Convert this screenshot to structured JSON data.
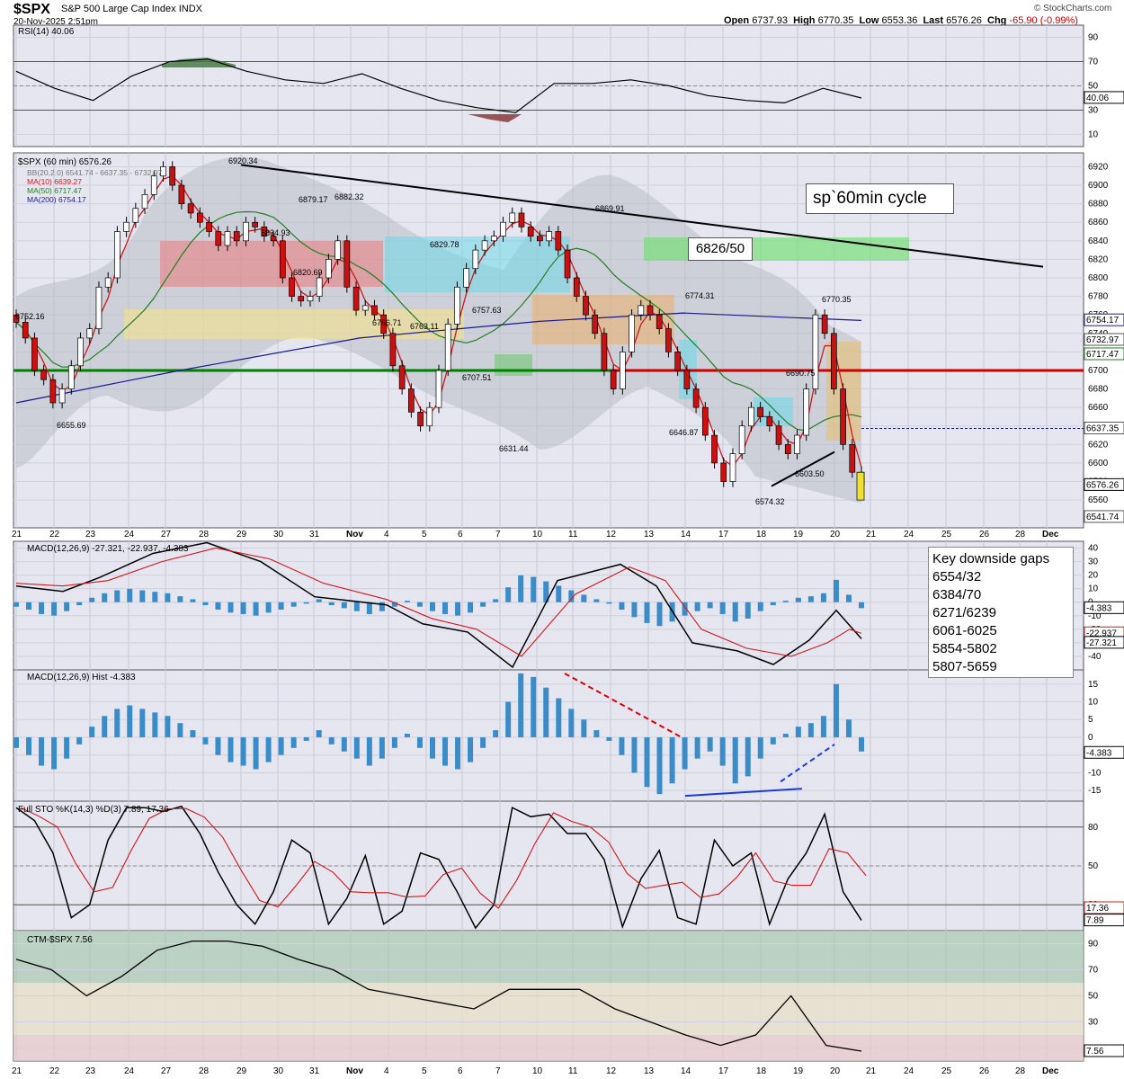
{
  "header": {
    "ticker": "$SPX",
    "name": "S&P 500 Large Cap Index",
    "exchange": "INDX",
    "datetime": "20-Nov-2025 2:51pm",
    "copyright": "© StockCharts.com",
    "open_label": "Open",
    "open": "6737.93",
    "high_label": "High",
    "high": "6770.35",
    "low_label": "Low",
    "low": "6553.36",
    "last_label": "Last",
    "last": "6576.26",
    "chg_label": "Chg",
    "chg": "-65.90 (-0.99%)"
  },
  "annotations": {
    "cycle_label": "sp`60min cycle",
    "level_label": "6826/50",
    "gaps_title": "Key downside gaps",
    "gaps": [
      "6554/32",
      "6384/70",
      "6271/6239",
      "6061-6025",
      "5854-5802",
      "5807-5659"
    ]
  },
  "colors": {
    "panel_bg": "#e6e6f0",
    "up_candle": "#ffffff",
    "down_candle": "#cc1010",
    "ma10": "#d01818",
    "ma50": "#208020",
    "ma200": "#1a1a8a",
    "bollinger_fill": "#b8bcc6",
    "histogram": "#3a8cc8",
    "support_green": "#008000",
    "support_red": "#cc0000",
    "trend": "#000000"
  },
  "chart_data": [
    {
      "type": "line",
      "panel": "RSI",
      "title": "RSI(14) 40.06",
      "ylim": [
        0,
        100
      ],
      "ticks": [
        10,
        30,
        50,
        70,
        90
      ],
      "last_label": "40.06",
      "x": [
        "Oct 21",
        "Oct 22",
        "Oct 23",
        "Oct 24",
        "Oct 27",
        "Oct 28",
        "Oct 29",
        "Oct 30",
        "Oct 31",
        "Nov 3",
        "Nov 4",
        "Nov 5",
        "Nov 6",
        "Nov 7",
        "Nov 10",
        "Nov 11",
        "Nov 12",
        "Nov 13",
        "Nov 14",
        "Nov 17",
        "Nov 18",
        "Nov 19",
        "Nov 20"
      ],
      "values": [
        62,
        48,
        38,
        58,
        70,
        72,
        62,
        55,
        52,
        60,
        48,
        38,
        32,
        28,
        52,
        52,
        55,
        50,
        42,
        38,
        36,
        48,
        40
      ]
    },
    {
      "type": "line",
      "panel": "Price",
      "title": "$SPX (60 min) 6576.26",
      "legend": [
        "BB(20,2.0) 6541.74 - 6637.35 - 6732.97",
        "MA(10) 6639.27",
        "MA(50) 6717.47",
        "MA(200) 6754.17"
      ],
      "ylim": [
        6530,
        6935
      ],
      "ticks": [
        6560,
        6580,
        6600,
        6620,
        6640,
        6660,
        6680,
        6700,
        6720,
        6740,
        6760,
        6780,
        6800,
        6820,
        6840,
        6860,
        6880,
        6900,
        6920
      ],
      "x_labels": [
        "21",
        "22",
        "23",
        "24",
        "27",
        "28",
        "29",
        "30",
        "31",
        "Nov",
        "4",
        "5",
        "6",
        "7",
        "10",
        "11",
        "12",
        "13",
        "14",
        "17",
        "18",
        "19",
        "20",
        "21",
        "24",
        "25",
        "26",
        "28",
        "Dec"
      ],
      "close": [
        6752,
        6735,
        6700,
        6690,
        6665,
        6680,
        6705,
        6735,
        6745,
        6790,
        6800,
        6850,
        6860,
        6875,
        6890,
        6910,
        6920,
        6900,
        6880,
        6870,
        6860,
        6850,
        6835,
        6850,
        6840,
        6860,
        6855,
        6845,
        6840,
        6800,
        6780,
        6775,
        6780,
        6800,
        6820,
        6840,
        6790,
        6765,
        6770,
        6760,
        6740,
        6705,
        6680,
        6655,
        6640,
        6660,
        6700,
        6750,
        6790,
        6810,
        6830,
        6840,
        6845,
        6860,
        6870,
        6855,
        6845,
        6840,
        6850,
        6830,
        6800,
        6780,
        6760,
        6740,
        6700,
        6680,
        6720,
        6760,
        6770,
        6760,
        6745,
        6720,
        6700,
        6680,
        6660,
        6630,
        6600,
        6580,
        6610,
        6640,
        6660,
        6650,
        6640,
        6620,
        6610,
        6630,
        6680,
        6760,
        6740,
        6680,
        6620,
        6590,
        6576
      ],
      "extremes": [
        "6920.34",
        "6882.32",
        "6879.17",
        "6869.91",
        "6834.93",
        "6829.78",
        "6820.69",
        "6774.31",
        "6770.35",
        "6766.71",
        "6763.11",
        "6757.63",
        "6752.16",
        "6707.51",
        "6690.75",
        "6655.69",
        "6646.87",
        "6631.44",
        "6603.50",
        "6574.32"
      ],
      "right_labels": [
        "6754.17",
        "6732.97",
        "6717.47",
        "6637.35",
        "6576.26",
        "6541.74"
      ],
      "support_lines": [
        6700
      ]
    },
    {
      "type": "line",
      "panel": "MACD",
      "title": "MACD(12,26,9) -27.321, -22.937, -4.383",
      "ylim": [
        -50,
        45
      ],
      "ticks": [
        -40,
        -30,
        -20,
        -10,
        0,
        10,
        20,
        30,
        40
      ],
      "right_labels": [
        "-4.383",
        "-22.937",
        "-27.321"
      ]
    },
    {
      "type": "bar",
      "panel": "MACD Hist",
      "title": "MACD(12,26,9) Hist -4.383",
      "ylim": [
        -18,
        19
      ],
      "ticks": [
        -15,
        -10,
        -5,
        0,
        5,
        10,
        15
      ],
      "last_label": "-4.383",
      "values": [
        -3,
        -5,
        -8,
        -9,
        -6,
        -2,
        3,
        6,
        8,
        9,
        8,
        7,
        6,
        4,
        2,
        -2,
        -5,
        -7,
        -8,
        -9,
        -7,
        -5,
        -3,
        -1,
        2,
        -2,
        -4,
        -6,
        -8,
        -6,
        -3,
        1,
        -3,
        -6,
        -8,
        -9,
        -7,
        -3,
        2,
        10,
        18,
        17,
        14,
        11,
        8,
        5,
        2,
        -1,
        -5,
        -10,
        -14,
        -16,
        -13,
        -9,
        -6,
        -4,
        -8,
        -13,
        -11,
        -6,
        -2,
        1,
        3,
        4,
        6,
        15,
        5,
        -4
      ]
    },
    {
      "type": "line",
      "panel": "Full STO",
      "title": "Full STO %K(14,3) %D(3) 7.89, 17.36",
      "ylim": [
        0,
        100
      ],
      "ticks": [
        20,
        50,
        80
      ],
      "right_labels": [
        "17.36",
        "7.89"
      ]
    },
    {
      "type": "line",
      "panel": "CTM",
      "title": "CTM-$SPX 7.56",
      "ylim": [
        0,
        100
      ],
      "ticks": [
        10,
        30,
        50,
        70,
        90
      ],
      "last_label": "7.56",
      "values": [
        78,
        70,
        50,
        65,
        85,
        92,
        92,
        88,
        78,
        70,
        55,
        50,
        45,
        40,
        55,
        55,
        55,
        40,
        30,
        20,
        12,
        20,
        50,
        12,
        7.56
      ]
    }
  ]
}
